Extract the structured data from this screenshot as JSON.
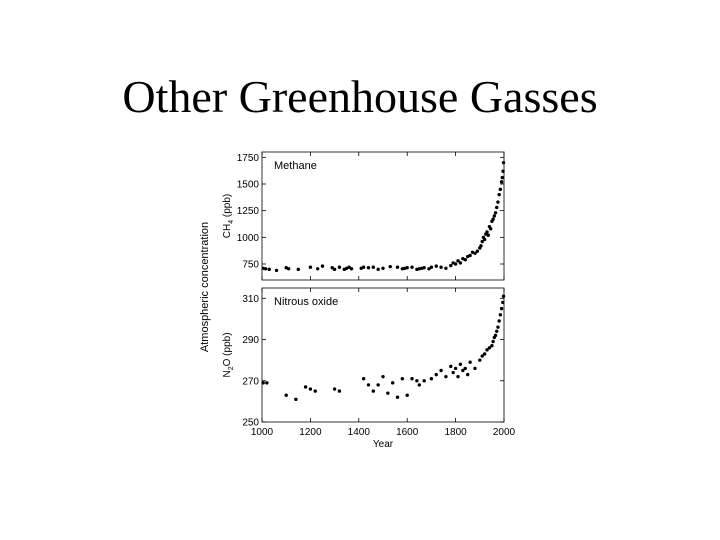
{
  "slide": {
    "title": "Other Greenhouse Gasses"
  },
  "figure": {
    "shared_ylabel": "Atmospheric concentration"
  },
  "chart_data": [
    {
      "type": "scatter",
      "title": "Methane",
      "xlabel": "Year",
      "ylabel": "CH4 (ppb)",
      "ylabel_main": "CH",
      "ylabel_sub": "4",
      "ylabel_tail": " (ppb)",
      "xlim": [
        1000,
        2000
      ],
      "ylim": [
        600,
        1800
      ],
      "yticks": [
        {
          "value": 750,
          "label": "750"
        },
        {
          "value": 1000,
          "label": "1000"
        },
        {
          "value": 1250,
          "label": "1250"
        },
        {
          "value": 1500,
          "label": "1500"
        },
        {
          "value": 1750,
          "label": "1750"
        }
      ],
      "series": [
        {
          "x": [
            1005,
            1015,
            1030,
            1060,
            1100,
            1110,
            1150,
            1200,
            1230,
            1250,
            1290,
            1300,
            1320,
            1340,
            1350,
            1360,
            1370,
            1410,
            1420,
            1440,
            1460,
            1480,
            1500,
            1530,
            1560,
            1580,
            1590,
            1600,
            1620,
            1640,
            1650,
            1660,
            1670,
            1690,
            1700,
            1720,
            1740,
            1760,
            1780,
            1790,
            1800,
            1810,
            1820,
            1830,
            1840,
            1850,
            1860,
            1870,
            1880,
            1890,
            1900,
            1905,
            1910,
            1915,
            1920,
            1925,
            1930,
            1935,
            1940,
            1945,
            1950,
            1955,
            1960,
            1965,
            1970,
            1975,
            1980,
            1985,
            1990,
            1993,
            1996,
            1998
          ],
          "y": [
            710,
            705,
            700,
            690,
            715,
            705,
            700,
            720,
            705,
            730,
            715,
            700,
            720,
            700,
            710,
            720,
            705,
            710,
            720,
            715,
            720,
            700,
            710,
            725,
            720,
            705,
            710,
            715,
            720,
            700,
            705,
            710,
            715,
            705,
            720,
            730,
            720,
            710,
            735,
            760,
            750,
            780,
            760,
            800,
            790,
            820,
            830,
            860,
            850,
            870,
            900,
            920,
            960,
            1000,
            980,
            1030,
            1050,
            1020,
            1100,
            1080,
            1150,
            1170,
            1200,
            1230,
            1280,
            1330,
            1400,
            1450,
            1520,
            1560,
            1620,
            1700
          ]
        }
      ]
    },
    {
      "type": "scatter",
      "title": "Nitrous oxide",
      "xlabel": "Year",
      "ylabel": "N2O (ppb)",
      "ylabel_main": "N",
      "ylabel_sub": "2",
      "ylabel_tail": "O (ppb)",
      "xlim": [
        1000,
        2000
      ],
      "ylim": [
        250,
        315
      ],
      "yticks": [
        {
          "value": 250,
          "label": "250"
        },
        {
          "value": 270,
          "label": "270"
        },
        {
          "value": 290,
          "label": "290"
        },
        {
          "value": 310,
          "label": "310"
        }
      ],
      "xticks": [
        {
          "value": 1000,
          "label": "1000"
        },
        {
          "value": 1200,
          "label": "1200"
        },
        {
          "value": 1400,
          "label": "1400"
        },
        {
          "value": 1600,
          "label": "1600"
        },
        {
          "value": 1800,
          "label": "1800"
        },
        {
          "value": 2000,
          "label": "2000"
        }
      ],
      "series": [
        {
          "x": [
            1005,
            1020,
            1100,
            1140,
            1180,
            1200,
            1220,
            1300,
            1320,
            1420,
            1440,
            1460,
            1480,
            1500,
            1520,
            1540,
            1560,
            1580,
            1600,
            1620,
            1640,
            1650,
            1670,
            1700,
            1720,
            1740,
            1760,
            1780,
            1790,
            1800,
            1810,
            1820,
            1830,
            1840,
            1850,
            1860,
            1880,
            1900,
            1910,
            1920,
            1930,
            1940,
            1950,
            1955,
            1960,
            1965,
            1970,
            1975,
            1980,
            1985,
            1990,
            1995,
            1998
          ],
          "y": [
            269,
            269,
            263,
            261,
            267,
            266,
            265,
            266,
            265,
            271,
            268,
            265,
            268,
            272,
            264,
            269,
            262,
            271,
            263,
            271,
            270,
            268,
            270,
            271,
            273,
            275,
            272,
            277,
            274,
            276,
            272,
            278,
            275,
            276,
            273,
            279,
            276,
            280,
            282,
            283,
            285,
            286,
            287,
            289,
            291,
            292,
            294,
            296,
            299,
            302,
            305,
            308,
            311
          ]
        }
      ]
    }
  ]
}
